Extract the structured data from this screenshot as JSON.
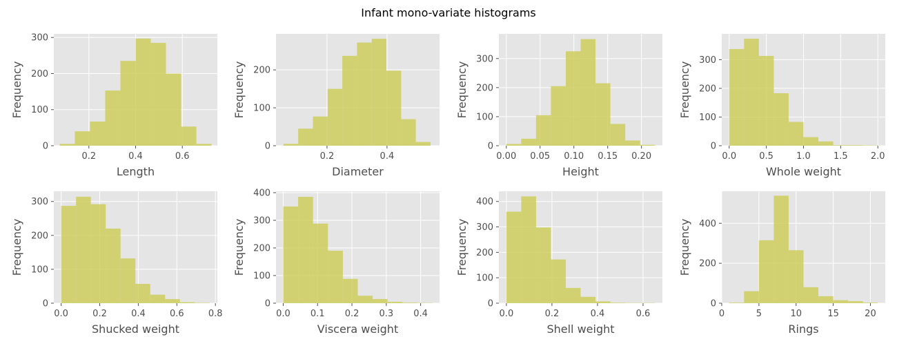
{
  "figure": {
    "title": "Infant mono-variate histograms"
  },
  "style": {
    "bar_color": "#cccc55",
    "bar_opacity": 0.8,
    "axes_background": "#e5e5e5",
    "grid_color": "#ffffff"
  },
  "chart_data": [
    {
      "type": "bar",
      "title": "",
      "xlabel": "Length",
      "ylabel": "Frequency",
      "xlim": [
        0.05,
        0.75
      ],
      "ylim": [
        0,
        310
      ],
      "xticks": [
        0.2,
        0.4,
        0.6
      ],
      "xtick_labels": [
        "0.2",
        "0.4",
        "0.6"
      ],
      "yticks": [
        0,
        100,
        200,
        300
      ],
      "ytick_labels": [
        "0",
        "100",
        "200",
        "300"
      ],
      "bin_edges": [
        0.075,
        0.14,
        0.205,
        0.27,
        0.335,
        0.4,
        0.465,
        0.53,
        0.595,
        0.66,
        0.725
      ],
      "values": [
        5,
        40,
        67,
        153,
        235,
        297,
        285,
        200,
        53,
        5
      ]
    },
    {
      "type": "bar",
      "title": "",
      "xlabel": "Diameter",
      "ylabel": "Frequency",
      "xlim": [
        0.03,
        0.575
      ],
      "ylim": [
        0,
        295
      ],
      "xticks": [
        0.2,
        0.4
      ],
      "xtick_labels": [
        "0.2",
        "0.4"
      ],
      "yticks": [
        0,
        100,
        200
      ],
      "ytick_labels": [
        "0",
        "100",
        "200"
      ],
      "bin_edges": [
        0.055,
        0.104,
        0.153,
        0.202,
        0.251,
        0.3,
        0.349,
        0.398,
        0.447,
        0.496,
        0.545
      ],
      "values": [
        5,
        45,
        77,
        150,
        237,
        272,
        282,
        198,
        70,
        10
      ]
    },
    {
      "type": "bar",
      "title": "",
      "xlabel": "Height",
      "ylabel": "Frequency",
      "xlim": [
        -0.011,
        0.231
      ],
      "ylim": [
        0,
        385
      ],
      "xticks": [
        0.0,
        0.05,
        0.1,
        0.15,
        0.2
      ],
      "xtick_labels": [
        "0.00",
        "0.05",
        "0.10",
        "0.15",
        "0.20"
      ],
      "yticks": [
        0,
        100,
        200,
        300
      ],
      "ytick_labels": [
        "0",
        "100",
        "200",
        "300"
      ],
      "bin_edges": [
        0.0,
        0.022,
        0.044,
        0.066,
        0.088,
        0.11,
        0.132,
        0.154,
        0.176,
        0.198,
        0.22
      ],
      "values": [
        6,
        24,
        105,
        205,
        325,
        367,
        215,
        75,
        18,
        3
      ]
    },
    {
      "type": "bar",
      "title": "",
      "xlabel": "Whole weight",
      "ylabel": "Frequency",
      "xlim": [
        -0.1,
        2.1
      ],
      "ylim": [
        0,
        390
      ],
      "xticks": [
        0.0,
        0.5,
        1.0,
        1.5,
        2.0
      ],
      "xtick_labels": [
        "0.0",
        "0.5",
        "1.0",
        "1.5",
        "2.0"
      ],
      "yticks": [
        0,
        100,
        200,
        300
      ],
      "ytick_labels": [
        "0",
        "100",
        "200",
        "300"
      ],
      "bin_edges": [
        0.0,
        0.2,
        0.4,
        0.6,
        0.8,
        1.0,
        1.2,
        1.4,
        1.6,
        1.8,
        2.0
      ],
      "values": [
        337,
        373,
        313,
        183,
        83,
        30,
        15,
        2,
        2,
        1
      ]
    },
    {
      "type": "bar",
      "title": "",
      "xlabel": "Shucked weight",
      "ylabel": "Frequency",
      "xlim": [
        -0.038,
        0.81
      ],
      "ylim": [
        0,
        330
      ],
      "xticks": [
        0.0,
        0.2,
        0.4,
        0.6,
        0.8
      ],
      "xtick_labels": [
        "0.0",
        "0.2",
        "0.4",
        "0.6",
        "0.8"
      ],
      "yticks": [
        0,
        100,
        200,
        300
      ],
      "ytick_labels": [
        "0",
        "100",
        "200",
        "300"
      ],
      "bin_edges": [
        0.0,
        0.077,
        0.154,
        0.231,
        0.308,
        0.385,
        0.462,
        0.539,
        0.616,
        0.693,
        0.77
      ],
      "values": [
        287,
        314,
        292,
        220,
        132,
        57,
        25,
        12,
        3,
        1
      ]
    },
    {
      "type": "bar",
      "title": "",
      "xlabel": "Viscera weight",
      "ylabel": "Frequency",
      "xlim": [
        -0.021,
        0.455
      ],
      "ylim": [
        0,
        405
      ],
      "xticks": [
        0.0,
        0.1,
        0.2,
        0.3,
        0.4
      ],
      "xtick_labels": [
        "0.0",
        "0.1",
        "0.2",
        "0.3",
        "0.4"
      ],
      "yticks": [
        0,
        100,
        200,
        300,
        400
      ],
      "ytick_labels": [
        "0",
        "100",
        "200",
        "300",
        "400"
      ],
      "bin_edges": [
        0.0,
        0.0434,
        0.0868,
        0.1302,
        0.1736,
        0.217,
        0.2604,
        0.3038,
        0.3472,
        0.3906,
        0.434
      ],
      "values": [
        350,
        385,
        288,
        190,
        88,
        27,
        15,
        5,
        2,
        1
      ]
    },
    {
      "type": "bar",
      "title": "",
      "xlabel": "Shell weight",
      "ylabel": "Frequency",
      "xlim": [
        -0.033,
        0.685
      ],
      "ylim": [
        0,
        440
      ],
      "xticks": [
        0.0,
        0.2,
        0.4,
        0.6
      ],
      "xtick_labels": [
        "0.0",
        "0.2",
        "0.4",
        "0.6"
      ],
      "yticks": [
        0,
        100,
        200,
        300,
        400
      ],
      "ytick_labels": [
        "0",
        "100",
        "200",
        "300",
        "400"
      ],
      "bin_edges": [
        0.0,
        0.0652,
        0.1304,
        0.1956,
        0.2608,
        0.326,
        0.3912,
        0.4564,
        0.5216,
        0.5868,
        0.652
      ],
      "values": [
        360,
        420,
        298,
        172,
        60,
        25,
        7,
        2,
        1,
        1
      ]
    },
    {
      "type": "bar",
      "title": "",
      "xlabel": "Rings",
      "ylabel": "Frequency",
      "xlim": [
        0.0,
        22.0
      ],
      "ylim": [
        0,
        560
      ],
      "xticks": [
        0,
        5,
        10,
        15,
        20
      ],
      "xtick_labels": [
        "0",
        "5",
        "10",
        "15",
        "20"
      ],
      "yticks": [
        0,
        200,
        400
      ],
      "ytick_labels": [
        "0",
        "200",
        "400"
      ],
      "bin_edges": [
        1,
        3,
        5,
        7,
        9,
        11,
        13,
        15,
        17,
        19,
        21
      ],
      "values": [
        3,
        60,
        315,
        538,
        265,
        80,
        35,
        15,
        10,
        3
      ]
    }
  ]
}
